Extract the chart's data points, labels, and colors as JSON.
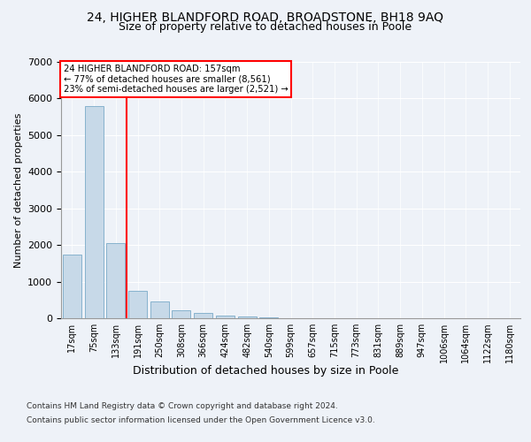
{
  "title": "24, HIGHER BLANDFORD ROAD, BROADSTONE, BH18 9AQ",
  "subtitle": "Size of property relative to detached houses in Poole",
  "xlabel": "Distribution of detached houses by size in Poole",
  "ylabel": "Number of detached properties",
  "categories": [
    "17sqm",
    "75sqm",
    "133sqm",
    "191sqm",
    "250sqm",
    "308sqm",
    "366sqm",
    "424sqm",
    "482sqm",
    "540sqm",
    "599sqm",
    "657sqm",
    "715sqm",
    "773sqm",
    "831sqm",
    "889sqm",
    "947sqm",
    "1006sqm",
    "1064sqm",
    "1122sqm",
    "1180sqm"
  ],
  "values": [
    1750,
    5800,
    2050,
    750,
    450,
    220,
    140,
    80,
    50,
    20,
    10,
    5,
    3,
    1,
    1,
    0,
    0,
    0,
    0,
    0,
    0
  ],
  "bar_color": "#c7d9e8",
  "bar_edgecolor": "#7aaac8",
  "vline_x_index": 2,
  "vline_color": "red",
  "annotation_text": "24 HIGHER BLANDFORD ROAD: 157sqm\n← 77% of detached houses are smaller (8,561)\n23% of semi-detached houses are larger (2,521) →",
  "annotation_box_color": "white",
  "annotation_box_edgecolor": "red",
  "ylim": [
    0,
    7000
  ],
  "yticks": [
    0,
    1000,
    2000,
    3000,
    4000,
    5000,
    6000,
    7000
  ],
  "footer1": "Contains HM Land Registry data © Crown copyright and database right 2024.",
  "footer2": "Contains public sector information licensed under the Open Government Licence v3.0.",
  "title_fontsize": 10,
  "subtitle_fontsize": 9,
  "background_color": "#eef2f8",
  "plot_bg_color": "#eef2f8"
}
